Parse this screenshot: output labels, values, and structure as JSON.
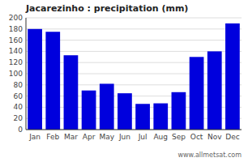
{
  "chart_data": {
    "type": "bar",
    "title": "Jacarezinho : precipitation (mm)",
    "categories": [
      "Jan",
      "Feb",
      "Mar",
      "Apr",
      "May",
      "Jun",
      "Jul",
      "Aug",
      "Sep",
      "Oct",
      "Nov",
      "Dec"
    ],
    "values": [
      180,
      175,
      133,
      70,
      82,
      65,
      46,
      47,
      67,
      130,
      140,
      190
    ],
    "color": "#0000dd",
    "ylim": [
      0,
      200
    ],
    "yticks": [
      0,
      20,
      40,
      60,
      80,
      100,
      120,
      140,
      160,
      180,
      200
    ],
    "grid": true,
    "annotations": [
      "www.allmetsat.com"
    ]
  }
}
